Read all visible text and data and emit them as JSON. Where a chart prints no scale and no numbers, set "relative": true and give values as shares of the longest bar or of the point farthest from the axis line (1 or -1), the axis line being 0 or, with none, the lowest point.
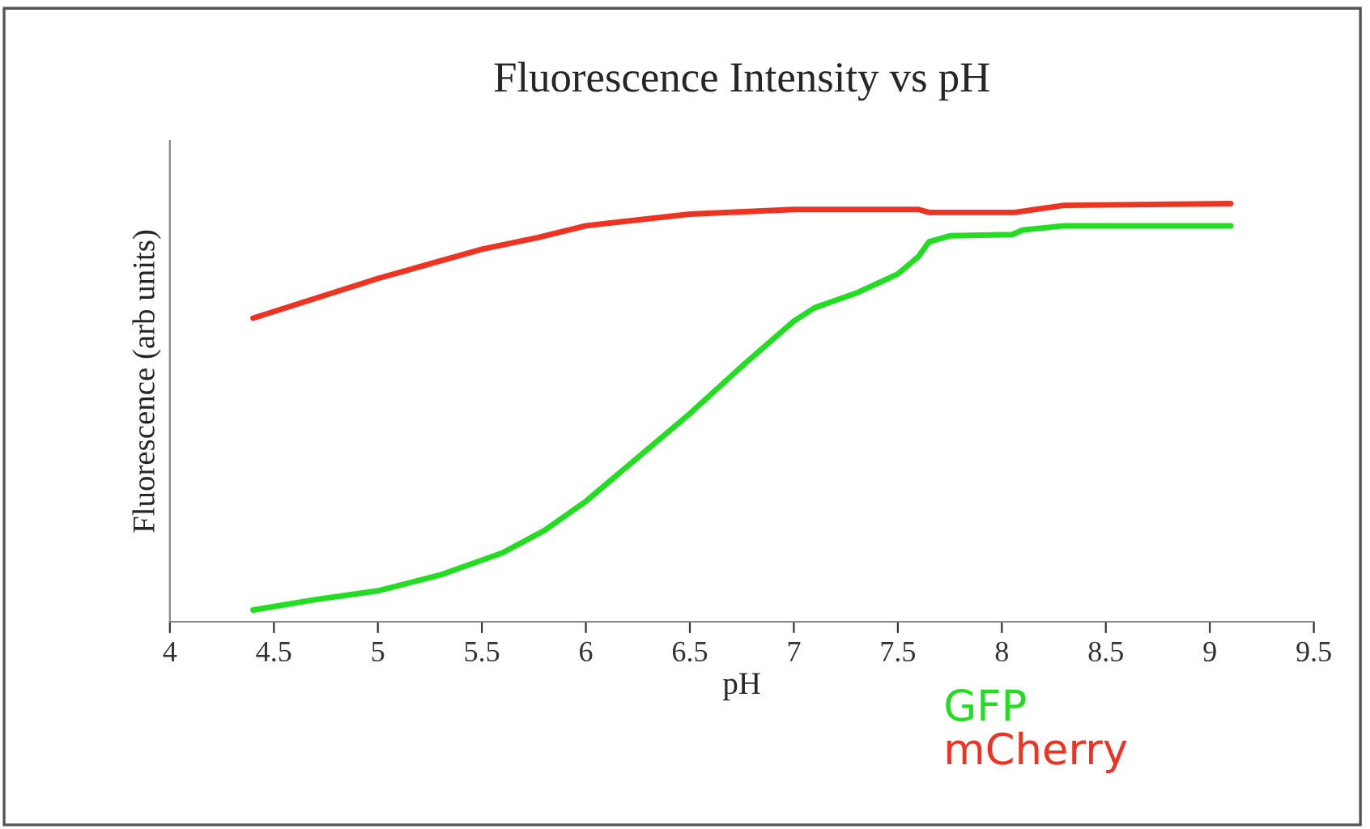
{
  "chart_data": {
    "type": "line",
    "title": "Fluorescence Intensity vs pH",
    "xlabel": "pH",
    "ylabel": "Fluorescence (arb units)",
    "relative": true,
    "xlim": [
      4,
      9.5
    ],
    "xticks": [
      4,
      4.5,
      5,
      5.5,
      6,
      6.5,
      7,
      7.5,
      8,
      8.5,
      9,
      9.5
    ],
    "grid": false,
    "legend": "bottom right",
    "marker": "none",
    "line_style": "solid",
    "series": [
      {
        "name": "GFP",
        "color": "#22dd22",
        "x": [
          4.4,
          4.7,
          5.0,
          5.3,
          5.6,
          5.8,
          6.0,
          6.25,
          6.5,
          6.75,
          7.0,
          7.1,
          7.3,
          7.5,
          7.6,
          7.65,
          7.75,
          8.05,
          8.1,
          8.3,
          9.1
        ],
        "values": [
          0.028,
          0.053,
          0.074,
          0.112,
          0.165,
          0.218,
          0.288,
          0.393,
          0.498,
          0.611,
          0.719,
          0.751,
          0.786,
          0.832,
          0.874,
          0.909,
          0.923,
          0.926,
          0.937,
          0.947,
          0.947
        ]
      },
      {
        "name": "mCherry",
        "color": "#ee3322",
        "x": [
          4.4,
          5.0,
          5.5,
          5.77,
          6.0,
          6.5,
          7.0,
          7.6,
          7.65,
          8.06,
          8.3,
          9.1
        ],
        "values": [
          0.726,
          0.821,
          0.891,
          0.919,
          0.947,
          0.975,
          0.986,
          0.986,
          0.979,
          0.979,
          0.996,
          1.0
        ]
      }
    ]
  }
}
